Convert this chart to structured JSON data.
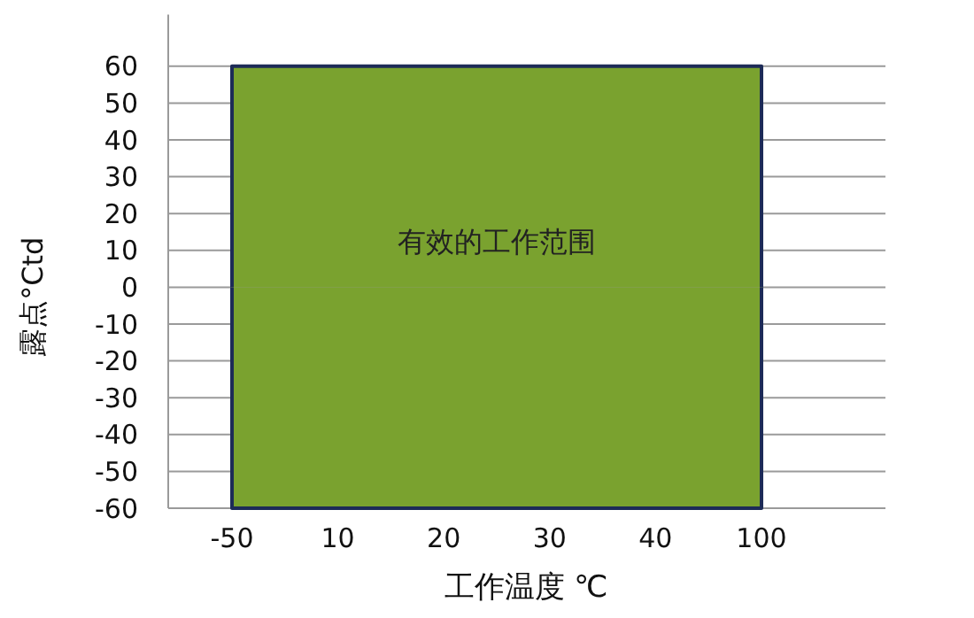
{
  "chart_data": {
    "type": "area",
    "xlabel": "工作温度 ℃",
    "ylabel": "露点°Ctd",
    "categories": [
      "-50",
      "10",
      "20",
      "30",
      "40",
      "100"
    ],
    "series": [
      {
        "color": "#7aa22f",
        "values": [
          60,
          60,
          60,
          60,
          60,
          60
        ]
      },
      {
        "color": "#7aa22f",
        "values": [
          -60,
          -60,
          -60,
          -60,
          -60,
          -60
        ]
      }
    ],
    "ylim": [
      -60,
      74
    ],
    "yticks": [
      -60,
      -50,
      -40,
      -30,
      -20,
      -10,
      0,
      10,
      20,
      30,
      40,
      50,
      60
    ],
    "grid": "y",
    "annotations": [
      "有效的工作范围"
    ]
  }
}
